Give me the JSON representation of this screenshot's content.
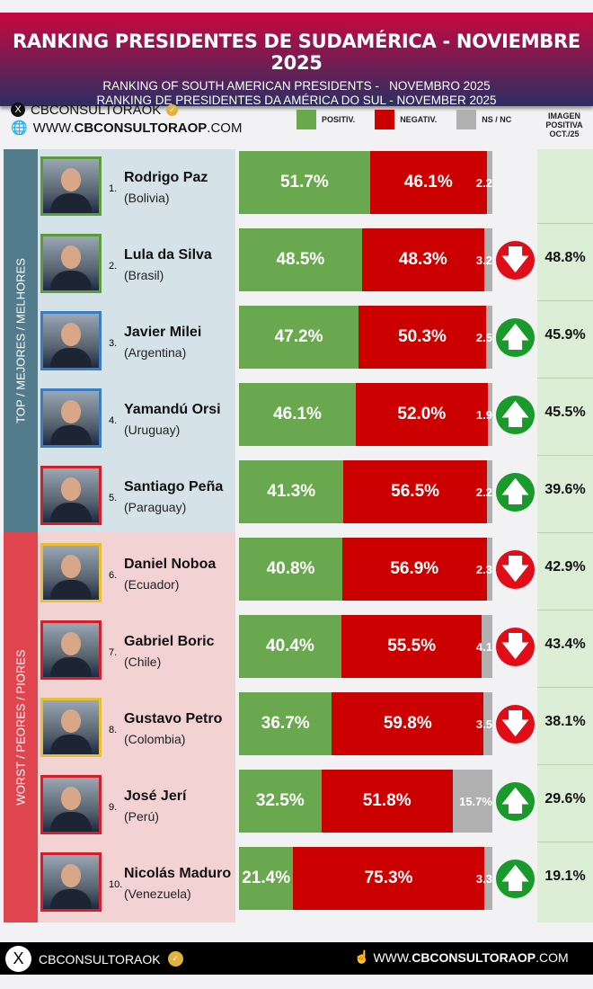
{
  "header": {
    "title": "RANKING PRESIDENTES DE SUDAMÉRICA - NOVIEMBRE 2025",
    "subtitle_en": "RANKING OF SOUTH AMERICAN PRESIDENTS -   NOVEMBRO 2025",
    "subtitle_pt": "RANKING DE PRESIDENTES DA AMÉRICA DO SUL - NOVEMBER 2025"
  },
  "brand": {
    "handle": "CBCONSULTORAOK",
    "url_pre": "WWW.",
    "url_bold": "CBCONSULTORAOP",
    "url_post": ".COM"
  },
  "legend": {
    "positive": "POSITIV.",
    "negative": "NEGATIV.",
    "nsnc": "NS / NC",
    "colors": {
      "positive": "#6aa84f",
      "negative": "#cc0000",
      "nsnc": "#b0b0b0"
    }
  },
  "oct_header": {
    "l1": "IMAGEN",
    "l2": "POSITIVA",
    "l3": "OCT./25"
  },
  "groups": {
    "top": "TOP / MEJORES / MELHORES",
    "worst": "WORST / PEORES / PIORES"
  },
  "chart_data": {
    "type": "bar",
    "stacked": true,
    "orientation": "horizontal",
    "categories": [
      "Rodrigo Paz",
      "Lula da Silva",
      "Javier Milei",
      "Yamandú Orsi",
      "Santiago Peña",
      "Daniel Noboa",
      "Gabriel Boric",
      "Gustavo Petro",
      "José Jerí",
      "Nicolás Maduro"
    ],
    "series": [
      {
        "name": "POSITIV.",
        "values": [
          51.7,
          48.5,
          47.2,
          46.1,
          41.3,
          40.8,
          40.4,
          36.7,
          32.5,
          21.4
        ]
      },
      {
        "name": "NEGATIV.",
        "values": [
          46.1,
          48.3,
          50.3,
          52.0,
          56.5,
          56.9,
          55.5,
          59.8,
          51.8,
          75.3
        ]
      },
      {
        "name": "NS / NC",
        "values": [
          2.2,
          3.2,
          2.5,
          1.9,
          2.2,
          2.3,
          4.1,
          3.5,
          15.7,
          3.3
        ]
      }
    ]
  },
  "rows": [
    {
      "rank": "1.",
      "name": "Rodrigo Paz",
      "country": "(Bolivia)",
      "pos": "51.7%",
      "neg": "46.1%",
      "ns": "2.2",
      "trend": "",
      "oct": "",
      "frame": "#5a9c3e"
    },
    {
      "rank": "2.",
      "name": "Lula da Silva",
      "country": "(Brasil)",
      "pos": "48.5%",
      "neg": "48.3%",
      "ns": "3.2",
      "trend": "down",
      "oct": "48.8%",
      "frame": "#5a9c3e"
    },
    {
      "rank": "3.",
      "name": "Javier Milei",
      "country": "(Argentina)",
      "pos": "47.2%",
      "neg": "50.3%",
      "ns": "2.5",
      "trend": "up",
      "oct": "45.9%",
      "frame": "#3a7cc0"
    },
    {
      "rank": "4.",
      "name": "Yamandú Orsi",
      "country": "(Uruguay)",
      "pos": "46.1%",
      "neg": "52.0%",
      "ns": "1.9",
      "trend": "up",
      "oct": "45.5%",
      "frame": "#3a7cc0"
    },
    {
      "rank": "5.",
      "name": "Santiago Peña",
      "country": "(Paraguay)",
      "pos": "41.3%",
      "neg": "56.5%",
      "ns": "2.2",
      "trend": "up",
      "oct": "39.6%",
      "frame": "#d21f2a"
    },
    {
      "rank": "6.",
      "name": "Daniel Noboa",
      "country": "(Ecuador)",
      "pos": "40.8%",
      "neg": "56.9%",
      "ns": "2.3",
      "trend": "down",
      "oct": "42.9%",
      "frame": "#e6c030"
    },
    {
      "rank": "7.",
      "name": "Gabriel Boric",
      "country": "(Chile)",
      "pos": "40.4%",
      "neg": "55.5%",
      "ns": "4.1",
      "trend": "down",
      "oct": "43.4%",
      "frame": "#d21f2a"
    },
    {
      "rank": "8.",
      "name": "Gustavo Petro",
      "country": "(Colombia)",
      "pos": "36.7%",
      "neg": "59.8%",
      "ns": "3.5",
      "trend": "down",
      "oct": "38.1%",
      "frame": "#e6c030"
    },
    {
      "rank": "9.",
      "name": "José Jerí",
      "country": "(Perú)",
      "pos": "32.5%",
      "neg": "51.8%",
      "ns": "15.7%",
      "trend": "up",
      "oct": "29.6%",
      "frame": "#d21f2a"
    },
    {
      "rank": "10.",
      "name": "Nicolás Maduro",
      "country": "(Venezuela)",
      "pos": "21.4%",
      "neg": "75.3%",
      "ns": "3.3",
      "trend": "up",
      "oct": "19.1%",
      "frame": "#d21f2a"
    }
  ],
  "trend_colors": {
    "up": "#1a9a2a",
    "down": "#e00d18"
  }
}
